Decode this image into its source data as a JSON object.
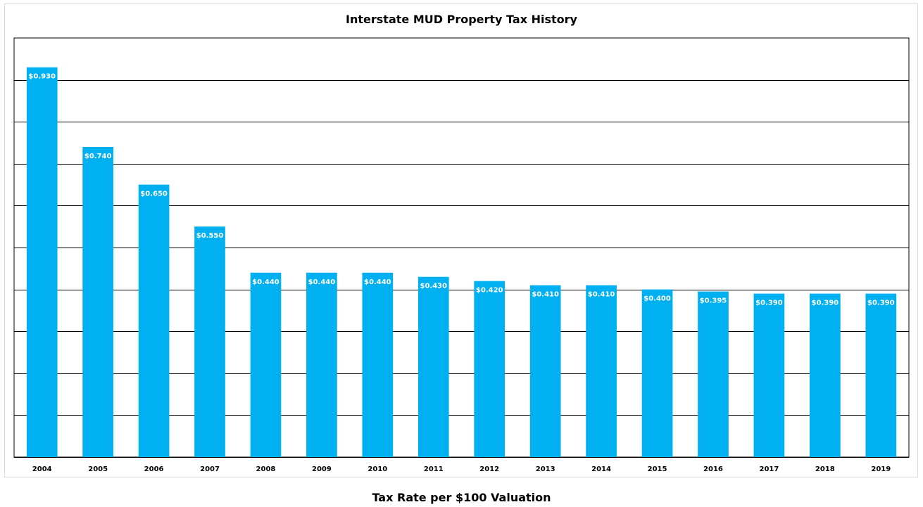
{
  "chart_data": {
    "type": "bar",
    "title": "Interstate MUD Property Tax History",
    "xlabel": "Tax Rate per $100 Valuation",
    "ylabel": "",
    "categories": [
      "2004",
      "2005",
      "2006",
      "2007",
      "2008",
      "2009",
      "2010",
      "2011",
      "2012",
      "2013",
      "2014",
      "2015",
      "2016",
      "2017",
      "2018",
      "2019"
    ],
    "values": [
      0.93,
      0.74,
      0.65,
      0.55,
      0.44,
      0.44,
      0.44,
      0.43,
      0.42,
      0.41,
      0.41,
      0.4,
      0.395,
      0.39,
      0.39,
      0.39
    ],
    "data_labels": [
      "$0.930",
      "$0.740",
      "$0.650",
      "$0.550",
      "$0.440",
      "$0.440",
      "$0.440",
      "$0.430",
      "$0.420",
      "$0.410",
      "$0.410",
      "$0.400",
      "$0.395",
      "$0.390",
      "$0.390",
      "$0.390"
    ],
    "ylim": [
      0,
      1.0
    ],
    "ytick_step": 0.1,
    "grid": true,
    "legend": "none",
    "bar_color": "#00b0f0",
    "gridline_color": "#000000"
  }
}
